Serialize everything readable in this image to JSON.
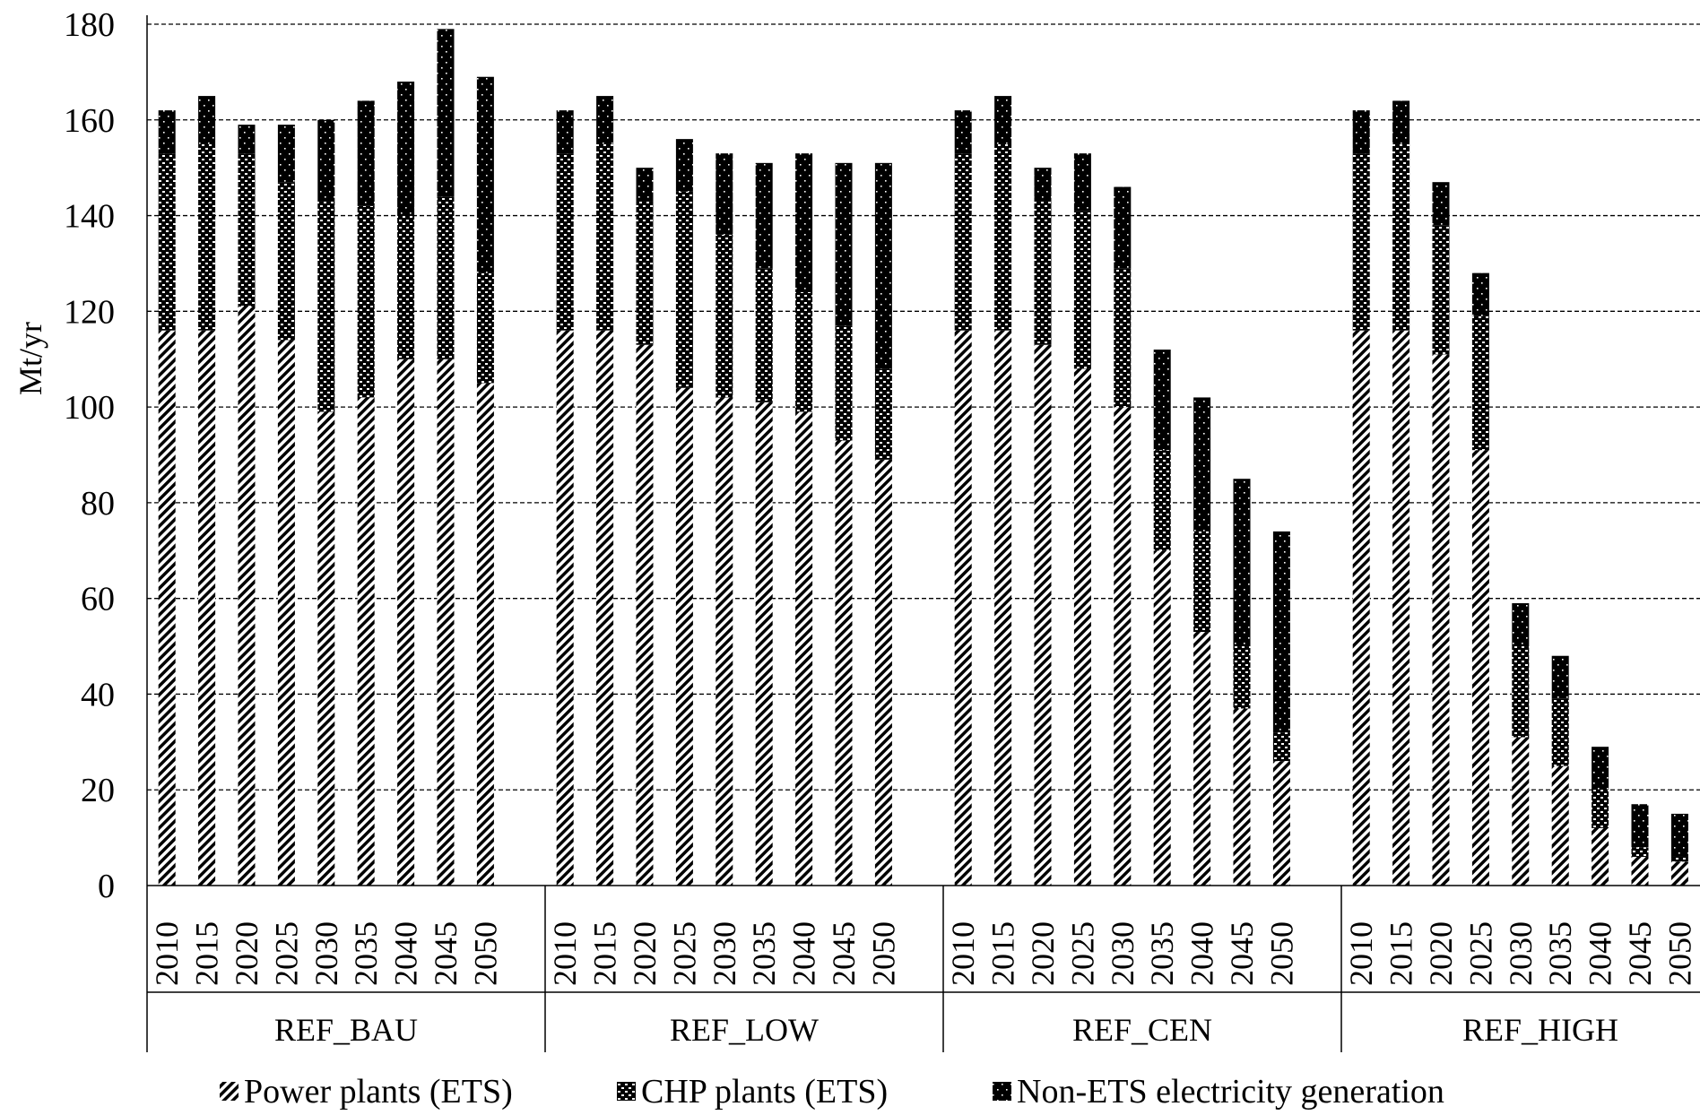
{
  "chart_data": {
    "type": "bar",
    "stacked": true,
    "ylabel": "Mt/yr",
    "ylim": [
      0,
      180
    ],
    "yticks": [
      0,
      20,
      40,
      60,
      80,
      100,
      120,
      140,
      160,
      180
    ],
    "grid": true,
    "legend_position": "bottom",
    "years": [
      "2010",
      "2015",
      "2020",
      "2025",
      "2030",
      "2035",
      "2040",
      "2045",
      "2050"
    ],
    "groups": [
      {
        "name": "REF_BAU",
        "series": [
          {
            "name": "Power plants (ETS)",
            "values": [
              116,
              116,
              121,
              114,
              99,
              102,
              110,
              110,
              105
            ]
          },
          {
            "name": "CHP plants (ETS)",
            "values": [
              37,
              39,
              32,
              33,
              44,
              40,
              30,
              34,
              23
            ]
          },
          {
            "name": "Non-ETS electricity generation",
            "values": [
              9,
              10,
              6,
              12,
              17,
              22,
              28,
              35,
              41
            ]
          }
        ]
      },
      {
        "name": "REF_LOW",
        "series": [
          {
            "name": "Power plants (ETS)",
            "values": [
              116,
              116,
              113,
              104,
              102,
              101,
              99,
              93,
              89
            ]
          },
          {
            "name": "CHP plants (ETS)",
            "values": [
              37,
              39,
              30,
              41,
              34,
              28,
              25,
              24,
              19
            ]
          },
          {
            "name": "Non-ETS electricity generation",
            "values": [
              9,
              10,
              7,
              11,
              17,
              22,
              29,
              34,
              43
            ]
          }
        ]
      },
      {
        "name": "REF_CEN",
        "series": [
          {
            "name": "Power plants (ETS)",
            "values": [
              116,
              116,
              113,
              108,
              100,
              70,
              53,
              37,
              26
            ]
          },
          {
            "name": "CHP plants (ETS)",
            "values": [
              37,
              39,
              30,
              33,
              29,
              21,
              21,
              13,
              6
            ]
          },
          {
            "name": "Non-ETS electricity generation",
            "values": [
              9,
              10,
              7,
              12,
              17,
              21,
              28,
              35,
              42
            ]
          }
        ]
      },
      {
        "name": "REF_HIGH",
        "series": [
          {
            "name": "Power plants (ETS)",
            "values": [
              116,
              116,
              111,
              91,
              31,
              25,
              12,
              6,
              5
            ]
          },
          {
            "name": "CHP plants (ETS)",
            "values": [
              37,
              39,
              27,
              28,
              19,
              14,
              8,
              2,
              1
            ]
          },
          {
            "name": "Non-ETS electricity generation",
            "values": [
              9,
              9,
              9,
              9,
              9,
              9,
              9,
              9,
              9
            ]
          }
        ]
      }
    ],
    "legend": [
      {
        "name": "Power plants (ETS)",
        "pattern": "diagonal-hatch"
      },
      {
        "name": "CHP plants (ETS)",
        "pattern": "crosshatch"
      },
      {
        "name": "Non-ETS electricity generation",
        "pattern": "black-dotted"
      }
    ],
    "colors": {
      "ink": "#000000",
      "grid": "#000000",
      "background": "#ffffff"
    }
  }
}
